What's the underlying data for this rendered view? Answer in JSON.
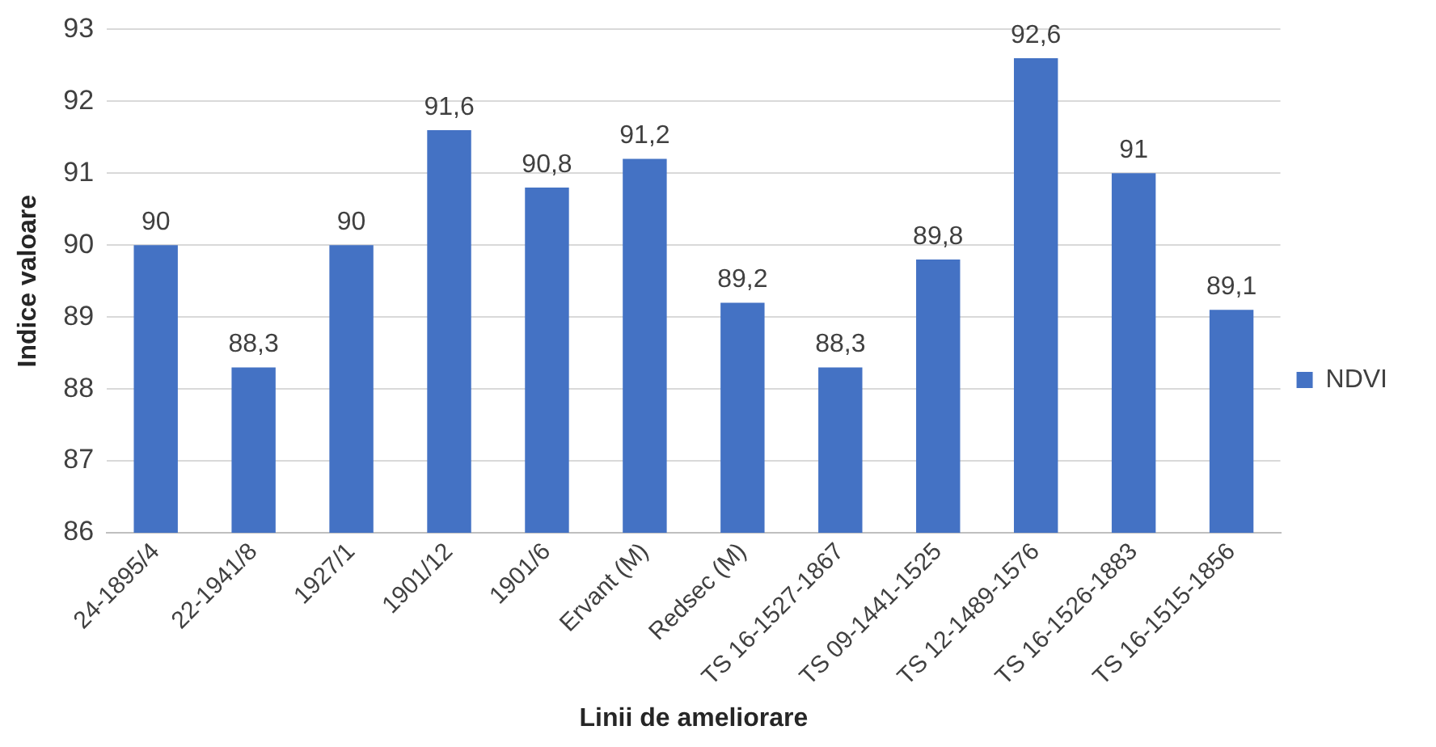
{
  "chart_data": {
    "type": "bar",
    "xlabel": "Linii de ameliorare",
    "ylabel": "Indice valoare",
    "categories": [
      "24-1895/4",
      "22-1941/8",
      "1927/1",
      "1901/12",
      "1901/6",
      "Ervant (M)",
      "Redsec (M)",
      "TS 16-1527-1867",
      "TS 09-1441-1525",
      "TS 12-1489-1576",
      "TS 16-1526-1883",
      "TS 16-1515-1856"
    ],
    "series": [
      {
        "name": "NDVI",
        "color": "#4472c4",
        "values": [
          90,
          88.3,
          90,
          91.6,
          90.8,
          91.2,
          89.2,
          88.3,
          89.8,
          92.6,
          91,
          89.1
        ],
        "value_labels": [
          "90",
          "88,3",
          "90",
          "91,6",
          "90,8",
          "91,2",
          "89,2",
          "88,3",
          "89,8",
          "92,6",
          "91",
          "89,1"
        ]
      }
    ],
    "ylim": [
      86,
      93
    ],
    "yticks": [
      86,
      87,
      88,
      89,
      90,
      91,
      92,
      93
    ],
    "grid": "y",
    "legend": "right"
  }
}
